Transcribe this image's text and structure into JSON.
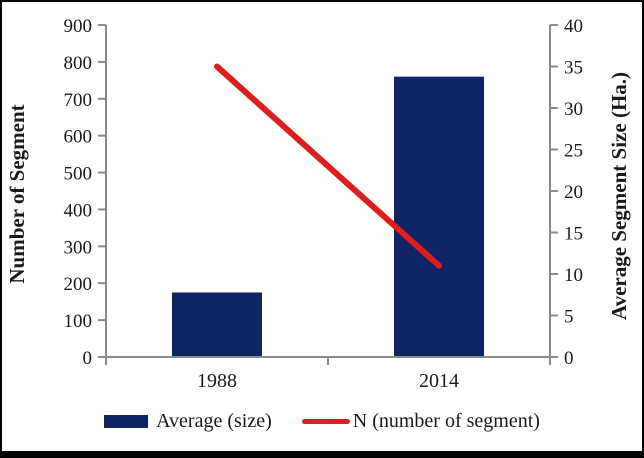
{
  "chart_data": {
    "type": "bar",
    "subtype": "combo-bar-line-dual-axis",
    "title": "",
    "categories": [
      "1988",
      "2014"
    ],
    "series": [
      {
        "name": "Average (size)",
        "type": "bar",
        "axis": "left",
        "values": [
          175,
          760
        ],
        "color": "#0f2464"
      },
      {
        "name": "N (number of segment)",
        "type": "line",
        "axis": "right",
        "values": [
          35,
          11
        ],
        "color": "#dd1e1e"
      }
    ],
    "left_axis": {
      "title": "Number of Segment",
      "min": 0,
      "max": 900,
      "step": 100,
      "ticks": [
        0,
        100,
        200,
        300,
        400,
        500,
        600,
        700,
        800,
        900
      ]
    },
    "right_axis": {
      "title": "Average Segment Size (Ha.)",
      "min": 0,
      "max": 40,
      "step": 5,
      "ticks": [
        0,
        5,
        10,
        15,
        20,
        25,
        30,
        35,
        40
      ]
    },
    "grid": false,
    "legend_position": "bottom"
  },
  "legend": {
    "items": [
      {
        "label": "Average (size)",
        "swatch": "bar",
        "color": "#0f2464"
      },
      {
        "label": "N (number of segment)",
        "swatch": "line",
        "color": "#dd1e1e"
      }
    ]
  },
  "colors": {
    "bar": "#0f2464",
    "line": "#dd1e1e",
    "axis": "#8a8a8a",
    "text": "#1a1a1a",
    "frame": "#000000",
    "background": "#ffffff"
  }
}
